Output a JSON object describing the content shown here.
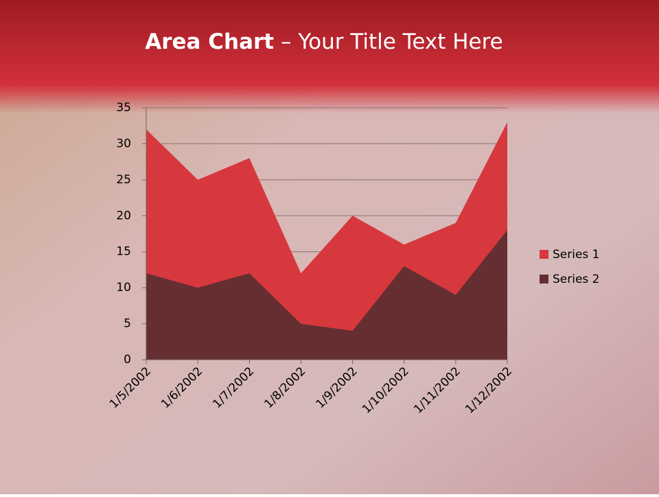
{
  "chart_data": {
    "type": "area",
    "title": {
      "bold": "Area Chart",
      "rest": "– Your Title Text Here"
    },
    "categories": [
      "1/5/2002",
      "1/6/2002",
      "1/7/2002",
      "1/8/2002",
      "1/9/2002",
      "1/10/2002",
      "1/11/2002",
      "1/12/2002"
    ],
    "series": [
      {
        "name": "Series 1",
        "color": "#d6383e",
        "values": [
          32,
          25,
          28,
          12,
          20,
          16,
          19,
          33
        ]
      },
      {
        "name": "Series 2",
        "color": "#652e30",
        "values": [
          12,
          10,
          12,
          5,
          4,
          13,
          9,
          18
        ]
      }
    ],
    "ylim": [
      0,
      35
    ],
    "yticks": [
      0,
      5,
      10,
      15,
      20,
      25,
      30,
      35
    ],
    "grid": true,
    "legend": "right"
  }
}
